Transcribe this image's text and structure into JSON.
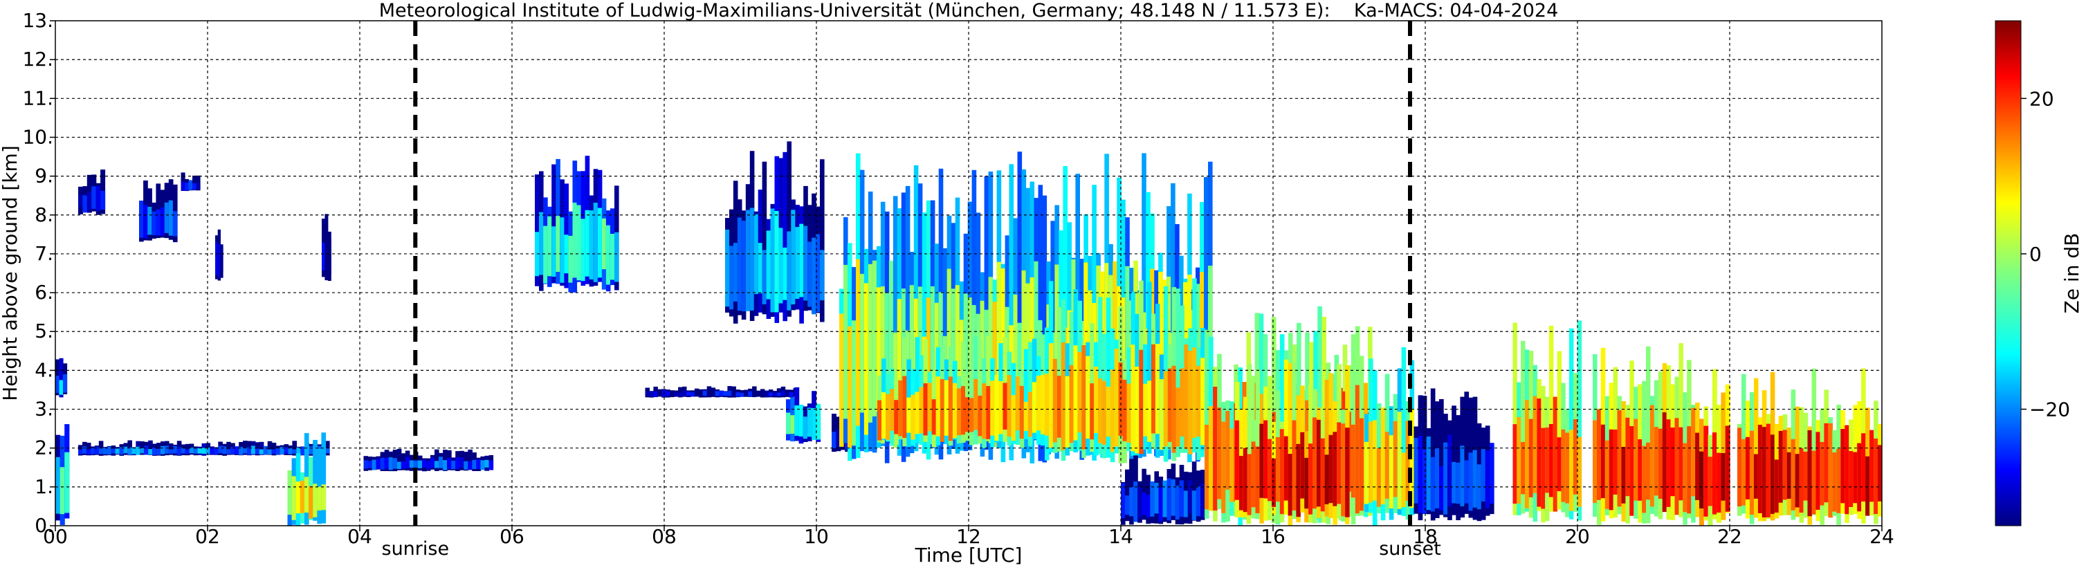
{
  "chart_data": {
    "type": "heatmap",
    "title": "Meteorological Institute of Ludwig-Maximilians-Universität (München, Germany; 48.148 N / 11.573 E):    Ka-MACS: 04-04-2024",
    "xlabel": "Time [UTC]",
    "ylabel": "Height above ground [km]",
    "xlim": [
      0,
      24
    ],
    "ylim": [
      0,
      13
    ],
    "x_ticks": [
      0,
      2,
      4,
      6,
      8,
      10,
      12,
      14,
      16,
      18,
      20,
      22,
      24
    ],
    "x_tick_labels": [
      "00",
      "02",
      "04",
      "06",
      "08",
      "10",
      "12",
      "14",
      "16",
      "18",
      "20",
      "22",
      "24"
    ],
    "y_ticks": [
      0,
      1,
      2,
      3,
      4,
      5,
      6,
      7,
      8,
      9,
      10,
      11,
      12,
      13
    ],
    "y_tick_labels": [
      "0.",
      "1.",
      "2.",
      "3.",
      "4.",
      "5.",
      "6.",
      "7.",
      "8.",
      "9.",
      "10.",
      "11.",
      "12.",
      "13."
    ],
    "grid": true,
    "markers": [
      {
        "label": "sunrise",
        "time": 4.73
      },
      {
        "label": "sunset",
        "time": 17.8
      }
    ],
    "colorbar": {
      "label": "Ze in dB",
      "range": [
        -35,
        30
      ],
      "ticks": [
        -20,
        0,
        20
      ],
      "tick_labels": [
        "−20",
        "0",
        "20"
      ],
      "colormap": "jet"
    },
    "echoes": [
      {
        "t0": 0.0,
        "t1": 0.18,
        "hbase": 0.0,
        "htop": 3.0,
        "ze": -10
      },
      {
        "t0": 0.0,
        "t1": 0.15,
        "hbase": 3.3,
        "htop": 4.4,
        "ze": -18
      },
      {
        "t0": 0.3,
        "t1": 3.6,
        "hbase": 1.8,
        "htop": 2.2,
        "ze": -20
      },
      {
        "t0": 0.3,
        "t1": 0.65,
        "hbase": 8.0,
        "htop": 9.2,
        "ze": -25
      },
      {
        "t0": 1.1,
        "t1": 1.6,
        "hbase": 7.3,
        "htop": 9.0,
        "ze": -22
      },
      {
        "t0": 1.65,
        "t1": 1.9,
        "hbase": 8.6,
        "htop": 9.1,
        "ze": -28
      },
      {
        "t0": 2.1,
        "t1": 2.2,
        "hbase": 6.3,
        "htop": 7.9,
        "ze": -30
      },
      {
        "t0": 3.5,
        "t1": 3.62,
        "hbase": 6.3,
        "htop": 8.1,
        "ze": -28
      },
      {
        "t0": 3.05,
        "t1": 3.55,
        "hbase": 0.0,
        "htop": 2.4,
        "ze": 5
      },
      {
        "t0": 4.05,
        "t1": 5.75,
        "hbase": 1.4,
        "htop": 2.0,
        "ze": -22
      },
      {
        "t0": 6.3,
        "t1": 7.4,
        "hbase": 6.0,
        "htop": 9.6,
        "ze": -10
      },
      {
        "t0": 7.75,
        "t1": 9.75,
        "hbase": 3.3,
        "htop": 3.6,
        "ze": -30
      },
      {
        "t0": 8.8,
        "t1": 10.1,
        "hbase": 5.2,
        "htop": 9.9,
        "ze": -15
      },
      {
        "t0": 9.6,
        "t1": 10.05,
        "hbase": 2.1,
        "htop": 3.7,
        "ze": -8
      },
      {
        "t0": 10.2,
        "t1": 10.55,
        "hbase": 1.9,
        "htop": 2.9,
        "ze": -30
      },
      {
        "t0": 10.3,
        "t1": 15.2,
        "hbase": 1.6,
        "htop": 9.7,
        "ze": 2
      },
      {
        "t0": 10.8,
        "t1": 13.0,
        "hbase": 2.0,
        "htop": 4.9,
        "ze": 12
      },
      {
        "t0": 13.0,
        "t1": 15.1,
        "hbase": 1.6,
        "htop": 6.4,
        "ze": 10
      },
      {
        "t0": 14.0,
        "t1": 15.1,
        "hbase": 0.0,
        "htop": 1.9,
        "ze": -25
      },
      {
        "t0": 15.1,
        "t1": 17.3,
        "hbase": 0.0,
        "htop": 5.7,
        "ze": 14
      },
      {
        "t0": 15.5,
        "t1": 17.0,
        "hbase": 0.0,
        "htop": 4.3,
        "ze": 22
      },
      {
        "t0": 17.2,
        "t1": 17.85,
        "hbase": 0.0,
        "htop": 4.7,
        "ze": 8
      },
      {
        "t0": 17.85,
        "t1": 18.9,
        "hbase": 0.1,
        "htop": 3.6,
        "ze": -25
      },
      {
        "t0": 19.15,
        "t1": 20.05,
        "hbase": 0.0,
        "htop": 5.3,
        "ze": 15
      },
      {
        "t0": 20.2,
        "t1": 21.6,
        "hbase": 0.0,
        "htop": 4.8,
        "ze": 20
      },
      {
        "t0": 21.6,
        "t1": 22.0,
        "hbase": 0.0,
        "htop": 4.2,
        "ze": 24
      },
      {
        "t0": 22.1,
        "t1": 24.0,
        "hbase": 0.0,
        "htop": 4.1,
        "ze": 21
      }
    ]
  }
}
